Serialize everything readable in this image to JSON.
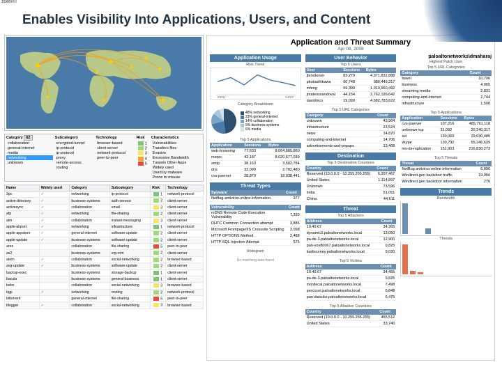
{
  "slide_title": "Enables Visibility Into Applications, Users, and Content",
  "map": {
    "ocean": "#4a7aa8",
    "land": "#b8c888",
    "arc": "#ff9900",
    "dot": "#ffcc00"
  },
  "filter": {
    "headers": {
      "category": "Category",
      "subcategory": "Subcategory",
      "technology": "Technology",
      "risk": "Risk",
      "characteristics": "Characteristics"
    },
    "count_badge": "62",
    "categories": [
      "collaboration",
      "general-internet",
      "media",
      "networking",
      "unknown"
    ],
    "selected_cat": "networking",
    "subcategories": [
      "encrypted-tunnel",
      "ip-protocol",
      "ip-protocol",
      "proxy",
      "remote-access",
      "routing"
    ],
    "technologies": [
      "browser-based",
      "client-server",
      "network-protocol",
      "peer-to-peer"
    ],
    "risks": [
      {
        "val": "1",
        "color": "#7cc576"
      },
      {
        "val": "2",
        "color": "#a3d977"
      },
      {
        "val": "3",
        "color": "#f7e463"
      },
      {
        "val": "4",
        "color": "#f5a623"
      },
      {
        "val": "5",
        "color": "#e74c3c"
      }
    ],
    "characteristics": [
      "Vulnerabilities",
      "Transfers files",
      "Evasive",
      "Excessive Bandwidth",
      "Tunnels Other Apps",
      "Widely used",
      "Used by malware",
      "Prone to misuse"
    ]
  },
  "app_table": {
    "headers": [
      "Name",
      "Widely used",
      "Category",
      "Subcategory",
      "Risk",
      "Technology"
    ],
    "rows": [
      [
        "3pc",
        "✓",
        "networking",
        "ip-protocol",
        "1",
        "network-protocol"
      ],
      [
        "active-directory",
        "✓",
        "business-systems",
        "auth-service",
        "2",
        "client-server"
      ],
      [
        "activesync",
        "✓",
        "collaboration",
        "email",
        "3",
        "client-server"
      ],
      [
        "afp",
        "✓",
        "networking",
        "file-sharing",
        "2",
        "client-server"
      ],
      [
        "aim",
        "✓",
        "collaboration",
        "instant-messaging",
        "3",
        "client-server"
      ],
      [
        "apple-airport",
        "✓",
        "networking",
        "infrastructure",
        "1",
        "network-protocol"
      ],
      [
        "apple-appstore",
        "✓",
        "general-internet",
        "software-update",
        "2",
        "client-server"
      ],
      [
        "apple-update",
        "✓",
        "business-systems",
        "software-update",
        "2",
        "client-server"
      ],
      [
        "ares",
        "",
        "collaboration",
        "file-sharing",
        "5",
        "peer-to-peer"
      ],
      [
        "as2",
        "",
        "business-systems",
        "erp-crm",
        "2",
        "client-server"
      ],
      [
        "atom",
        "✓",
        "collaboration",
        "social-networking",
        "2",
        "browser-based"
      ],
      [
        "avg-update",
        "✓",
        "business-systems",
        "software-update",
        "2",
        "client-server"
      ],
      [
        "backup-exec",
        "",
        "business-systems",
        "storage-backup",
        "1",
        "client-server"
      ],
      [
        "bacula",
        "",
        "business-systems",
        "general-business",
        "1",
        "client-server"
      ],
      [
        "bebo",
        "",
        "collaboration",
        "social-networking",
        "3",
        "browser-based"
      ],
      [
        "bgp",
        "✓",
        "networking",
        "routing",
        "2",
        "network-protocol"
      ],
      [
        "bittorrent",
        "",
        "general-internet",
        "file-sharing",
        "5",
        "peer-to-peer"
      ],
      [
        "blogger",
        "✓",
        "collaboration",
        "social-networking",
        "3",
        "browser-based"
      ]
    ],
    "risk_colors": {
      "1": "#7cc576",
      "2": "#a3d977",
      "3": "#f7e463",
      "4": "#f5a623",
      "5": "#e74c3c"
    }
  },
  "report": {
    "title": "Application and Threat Summary",
    "date": "Apr 08, 2008",
    "col1": {
      "usage_head": "Application Usage",
      "risk_trend": "Risk Trend",
      "risk_color": "#4a7ba6",
      "line_x": [
        "03/31",
        "04/07"
      ],
      "cat_breakdown": "Category Breakdown",
      "pie": [
        {
          "label": "networking",
          "val": 48,
          "color": "#2d506f"
        },
        {
          "label": "general-internet",
          "val": 23,
          "color": "#4a7ba6"
        },
        {
          "label": "collaboration",
          "val": 14,
          "color": "#7aa3c4"
        },
        {
          "label": "business-systems",
          "val": 9,
          "color": "#a8c5da"
        },
        {
          "label": "media",
          "val": 6,
          "color": "#d4e2ed"
        }
      ],
      "top_apps": "Top 5 Applications",
      "app_hdr": [
        "Application",
        "Sessions",
        "Bytes"
      ],
      "apps": [
        [
          "web-browsing",
          "77,633",
          "8,064,885,860"
        ],
        [
          "msrpc",
          "42,187",
          "8,020,677,039"
        ],
        [
          "smtp",
          "38,163",
          "3,582,784"
        ],
        [
          "dns",
          "33,099",
          "2,782,480"
        ],
        [
          "cvs-pserver",
          "28,870",
          "18,038,441"
        ]
      ],
      "threat_types": "Threat Types",
      "tt_hdr": [
        "Spyware",
        "Count"
      ],
      "tt_rows": [
        [
          "Netflag-antivirus-enline-information",
          "377"
        ]
      ],
      "vuln_hdr": [
        "Vulnerability",
        "Count"
      ],
      "vuln_rows": [
        [
          "mDNS Remote Code Execution Vulnerability",
          "7,330"
        ],
        [
          "DHTC Common Connection attempt",
          "3,886"
        ],
        [
          "Microsoft Frontpage/IIS Crosssite Scripting",
          "3,098"
        ],
        [
          "HTTP OPTIONS Method",
          "2,488"
        ],
        [
          "HTTP SQL Injection Attempt",
          "576"
        ]
      ],
      "hist_label": "Histogram",
      "no_match": "No matching data found"
    },
    "col2": {
      "behavior_head": "User Behavior",
      "top_users": "Top 5 Users",
      "user_hdr": [
        "User",
        "Sessions",
        "Bytes"
      ],
      "users": [
        [
          "jbrookover",
          "82,279",
          "4,371,832,888"
        ],
        [
          "pkobashikawa",
          "60,748",
          "986,449,317"
        ],
        [
          "mfeng",
          "59,390",
          "1,010,960,492"
        ],
        [
          "jmateossandoval",
          "44,154",
          "2,762,199,642"
        ],
        [
          "davidmcn",
          "19,099",
          "4,682,783,622"
        ]
      ],
      "top_url": "Top 5 URL Categories",
      "url_hdr": [
        "Category",
        "Count"
      ],
      "url_rows": [
        [
          "unknown",
          "43,964"
        ],
        [
          "infrastructure",
          "23,524"
        ],
        [
          "news",
          "14,870"
        ],
        [
          "computing-and-internet",
          "14,706"
        ],
        [
          "advertisements-and-popups",
          "13,408"
        ]
      ],
      "dest_head": "Destination",
      "top_dest": "Top 5 Destination Countries",
      "dest_hdr": [
        "Country",
        "Count"
      ],
      "dest_rows": [
        [
          "Reserved (10.0.0.0 - 10.255.255.255)",
          "6,207,467"
        ],
        [
          "United States",
          "1,114,897"
        ],
        [
          "Unknown",
          "73,596"
        ],
        [
          "India",
          "51,051"
        ],
        [
          "China",
          "44,611"
        ]
      ],
      "threat_head": "Threat",
      "top_attackers": "Top 5 Attackers",
      "att_hdr": [
        "Address",
        "Count"
      ],
      "att_rows": [
        [
          "10.40.67",
          "34,365"
        ],
        [
          "dynamic3.paloaltonetworks.local",
          "13,050"
        ],
        [
          "pa-de-3.paloaltonetworks.local",
          "12,900"
        ],
        [
          "pan-vov80067.paloaltonetworks.local",
          "9,825"
        ],
        [
          "barbourney.paloaltonetworks.local",
          "9,020"
        ]
      ],
      "top_victims": "Top 5 Victims",
      "vic_hdr": [
        "Address",
        "Count"
      ],
      "vic_rows": [
        [
          "10.40.67",
          "34,455"
        ],
        [
          "pa-de-3.paloaltonetworks.local",
          "9,825"
        ],
        [
          "mordecai.paloaltonetworks.local",
          "7,498"
        ],
        [
          "percocet.paloaltonetworks.local",
          "6,848"
        ],
        [
          "pan-daisuke.paloaltonetworks.local",
          "6,475"
        ]
      ],
      "top_att_countries": "Top 5 Attacker Countries",
      "ctry_hdr": [
        "Country",
        "Count"
      ],
      "ctry_rows": [
        [
          "Reserved (10.0.0.0 - 10.255.255.255)",
          "455,512"
        ],
        [
          "United States",
          "33,740"
        ]
      ]
    },
    "col3": {
      "brand": "paloaltonetworks\\dmaharaj",
      "pat_label": "Highest Patch User",
      "top_url": "Top 5 URL Categories",
      "url_hdr": [
        "Category",
        "Count"
      ],
      "url_rows": [
        [
          "travel",
          "10,796"
        ],
        [
          "business",
          "4,065"
        ],
        [
          "streaming-media",
          "2,831"
        ],
        [
          "computing-and-internet",
          "2,744"
        ],
        [
          "infrastructure",
          "1,508"
        ]
      ],
      "top_apps": "Top 5 Applications",
      "app_hdr": [
        "Application",
        "Sessions",
        "Bytes"
      ],
      "apps": [
        [
          "cvs-pserver",
          "107,216",
          "485,761,118"
        ],
        [
          "unknown-tcp",
          "31,092",
          "20,240,317"
        ],
        [
          "ssl",
          "130,069",
          "29,030,485"
        ],
        [
          "skype",
          "130,792",
          "55,246,639"
        ],
        [
          "ms-ds-replication",
          "151,903",
          "216,830,273"
        ]
      ],
      "top_threats": "Top 5 Threats",
      "thr_hdr": [
        "Threat",
        "Count"
      ],
      "thr_rows": [
        [
          "NetBug antivirus enline information",
          "6,896"
        ],
        [
          "Windirect.gen backdoor traffic",
          "19,956"
        ],
        [
          "Windirect.gen backdoor information",
          "276"
        ]
      ],
      "trends_head": "Trends",
      "bars1_label": "Bandwidth",
      "bars1": {
        "vals": [
          1047450,
          930,
          300,
          201720
        ],
        "color": "#6a8fb0",
        "max": 1100000
      },
      "bars2_label": "Threats",
      "bars2": {
        "vals": [
          25000,
          3000,
          2000
        ],
        "color": "#e07050",
        "max": 27000
      }
    }
  }
}
